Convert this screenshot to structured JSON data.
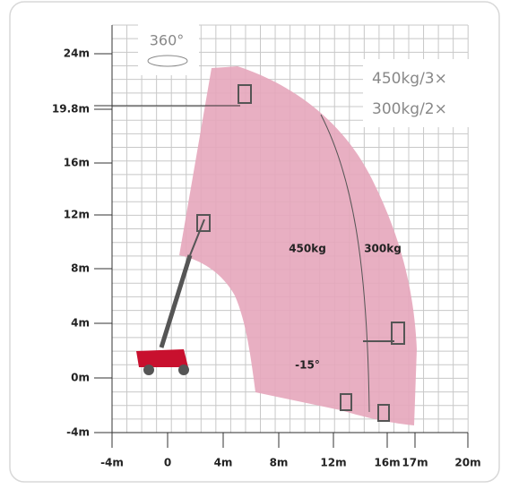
{
  "y_axis": {
    "labels": [
      "24m",
      "19.8m",
      "16m",
      "12m",
      "8m",
      "4m",
      "0m",
      "-4m"
    ]
  },
  "x_axis": {
    "labels": [
      "-4m",
      "0",
      "4m",
      "8m",
      "12m",
      "16m",
      "17m",
      "20m"
    ]
  },
  "rotation": "360°",
  "capacities": [
    "450kg/3×",
    "300kg/2×"
  ],
  "zones": [
    "450kg",
    "300kg"
  ],
  "angle": "-15°"
}
